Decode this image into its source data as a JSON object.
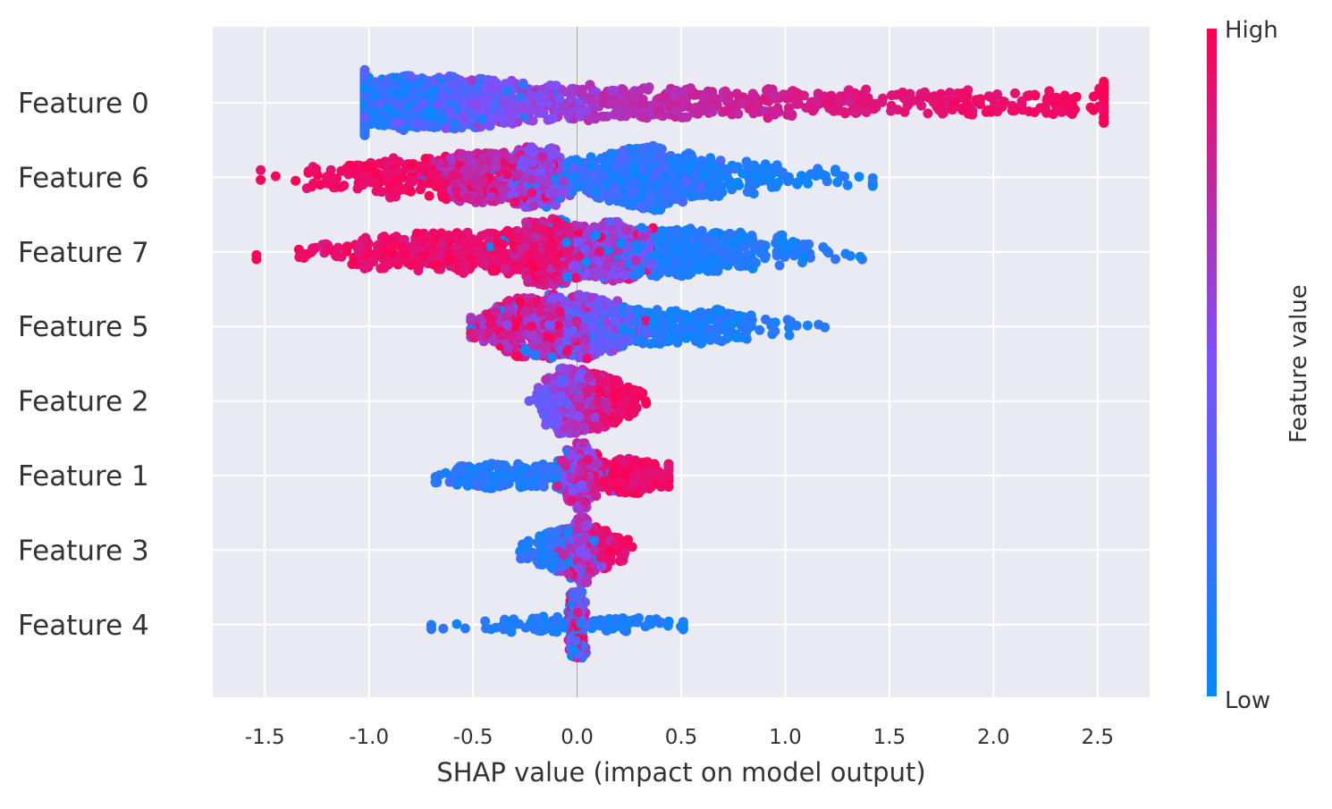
{
  "chart_data": {
    "type": "scatter",
    "subtype": "shap-beeswarm-summary",
    "title": "",
    "xlabel": "SHAP value (impact on model output)",
    "ylabel": "",
    "xlim": [
      -1.75,
      2.75
    ],
    "x_ticks": [
      -1.5,
      -1.0,
      -0.5,
      0.0,
      0.5,
      1.0,
      1.5,
      2.0,
      2.5
    ],
    "x_tick_labels": [
      "-1.5",
      "-1.0",
      "-0.5",
      "0.0",
      "0.5",
      "1.0",
      "1.5",
      "2.0",
      "2.5"
    ],
    "grid": true,
    "features": [
      {
        "name": "Feature 0",
        "label": "Feature 0",
        "min_shap": -1.02,
        "max_shap": 2.53,
        "trend": "positive",
        "dense_range": [
          -0.8,
          0.5
        ]
      },
      {
        "name": "Feature 6",
        "label": "Feature 6",
        "min_shap": -1.52,
        "max_shap": 1.42,
        "trend": "negative",
        "dense_range": [
          -0.8,
          0.6
        ]
      },
      {
        "name": "Feature 7",
        "label": "Feature 7",
        "min_shap": -1.54,
        "max_shap": 1.38,
        "trend": "negative",
        "dense_range": [
          -0.8,
          0.7
        ]
      },
      {
        "name": "Feature 5",
        "label": "Feature 5",
        "min_shap": -0.51,
        "max_shap": 1.19,
        "trend": "negative",
        "dense_range": [
          -0.45,
          0.5
        ]
      },
      {
        "name": "Feature 2",
        "label": "Feature 2",
        "min_shap": -0.23,
        "max_shap": 0.48,
        "trend": "positive",
        "dense_range": [
          -0.15,
          0.2
        ]
      },
      {
        "name": "Feature 1",
        "label": "Feature 1",
        "min_shap": -0.68,
        "max_shap": 0.44,
        "trend": "positive",
        "dense_range": [
          -0.1,
          0.2
        ]
      },
      {
        "name": "Feature 3",
        "label": "Feature 3",
        "min_shap": -0.29,
        "max_shap": 0.27,
        "trend": "positive",
        "dense_range": [
          -0.1,
          0.1
        ]
      },
      {
        "name": "Feature 4",
        "label": "Feature 4",
        "min_shap": -0.7,
        "max_shap": 0.51,
        "trend": "mixed",
        "dense_range": [
          -0.02,
          0.02
        ]
      }
    ],
    "colorbar": {
      "title": "Feature value",
      "high_label": "High",
      "low_label": "Low",
      "low_color": "#008bfb",
      "mid_color": "#7c52ff",
      "high_color": "#ff0051"
    }
  }
}
